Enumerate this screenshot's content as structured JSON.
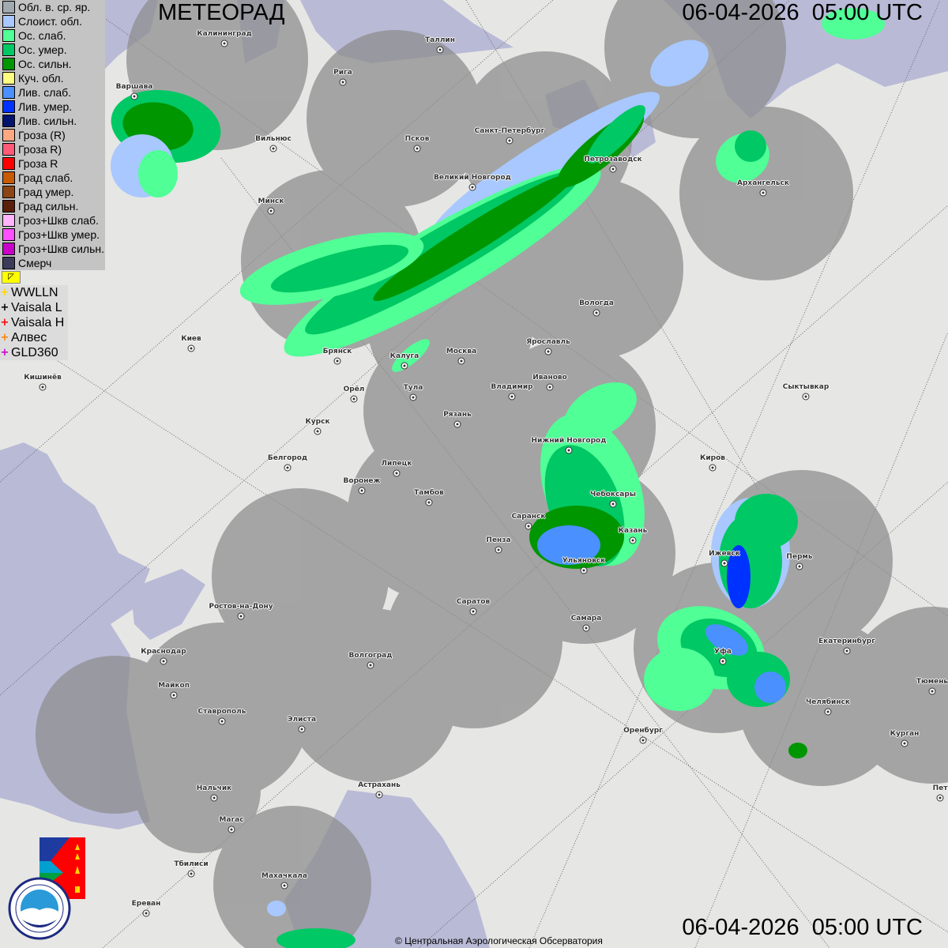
{
  "title": "МЕТЕОРАД",
  "datetime_top": "06-04-2026  05:00 UTC",
  "datetime_bottom": "06-04-2026  05:00 UTC",
  "copyright": "© Центральная Аэрологическая Обсерватория",
  "legend": [
    {
      "label": "Обл. в. ср. яр.",
      "color": "#a0aab0"
    },
    {
      "label": "Слоист. обл.",
      "color": "#a8c8ff"
    },
    {
      "label": "Ос. слаб.",
      "color": "#50ff96"
    },
    {
      "label": "Ос. умер.",
      "color": "#00c864"
    },
    {
      "label": "Ос. сильн.",
      "color": "#009600"
    },
    {
      "label": "Куч. обл.",
      "color": "#ffff80"
    },
    {
      "label": "Лив. слаб.",
      "color": "#4a90ff"
    },
    {
      "label": "Лив. умер.",
      "color": "#0032ff"
    },
    {
      "label": "Лив. сильн.",
      "color": "#00146e"
    },
    {
      "label": "Гроза (R)",
      "color": "#ffa882"
    },
    {
      "label": "Гроза R)",
      "color": "#ff5a78"
    },
    {
      "label": "Гроза R",
      "color": "#ff0000"
    },
    {
      "label": "Град слаб.",
      "color": "#c85a00"
    },
    {
      "label": "Град умер.",
      "color": "#8c4614"
    },
    {
      "label": "Град сильн.",
      "color": "#5a1e0a"
    },
    {
      "label": "Гроз+Шкв слаб.",
      "color": "#ffb4ff"
    },
    {
      "label": "Гроз+Шкв умер.",
      "color": "#ff50ff"
    },
    {
      "label": "Гроз+Шкв сильн.",
      "color": "#c800c8"
    },
    {
      "label": "Смерч",
      "color": "#3c3c5a"
    }
  ],
  "lightning_networks": [
    {
      "label": "WWLLN",
      "color": "#ffd700"
    },
    {
      "label": "Vaisala L",
      "color": "#000000"
    },
    {
      "label": "Vaisala H",
      "color": "#ff0000"
    },
    {
      "label": "Алвес",
      "color": "#ff8000"
    },
    {
      "label": "GLD360",
      "color": "#c800c8"
    }
  ],
  "cities": [
    "Калининград",
    "Таллин",
    "Рига",
    "Варшава",
    "Санкт-Петербург",
    "Вильнюс",
    "Псков",
    "Петрозаводск",
    "Великий Новгород",
    "Архангельск",
    "Минск",
    "Вологда",
    "Киев",
    "Брянск",
    "Ярославль",
    "Москва",
    "Калуга",
    "Иваново",
    "Кишинёв",
    "Орёл",
    "Тула",
    "Владимир",
    "Сыктывкар",
    "Рязань",
    "Курск",
    "Нижний Новгород",
    "Белгород",
    "Липецк",
    "Киров",
    "Воронеж",
    "Тамбов",
    "Чебоксары",
    "Саранск",
    "Казань",
    "Пенза",
    "Ижевск",
    "Пермь",
    "Ульяновск",
    "Ростов-на-Дону",
    "Саратов",
    "Самара",
    "Екатеринбург",
    "Краснодар",
    "Уфа",
    "Волгоград",
    "Майкоп",
    "Тюмень",
    "Челябинск",
    "Ставрополь",
    "Элиста",
    "Оренбург",
    "Курган",
    "Астрахань",
    "Нальчик",
    "Магас",
    "Махачкала",
    "Тбилиси",
    "Ереван",
    "Пет"
  ],
  "logos": {
    "cao": "ЦАО 1941",
    "roshydromet_ru": "РОСГИДРОМЕТ",
    "roshydromet_en": "ROSHYDROMET"
  }
}
